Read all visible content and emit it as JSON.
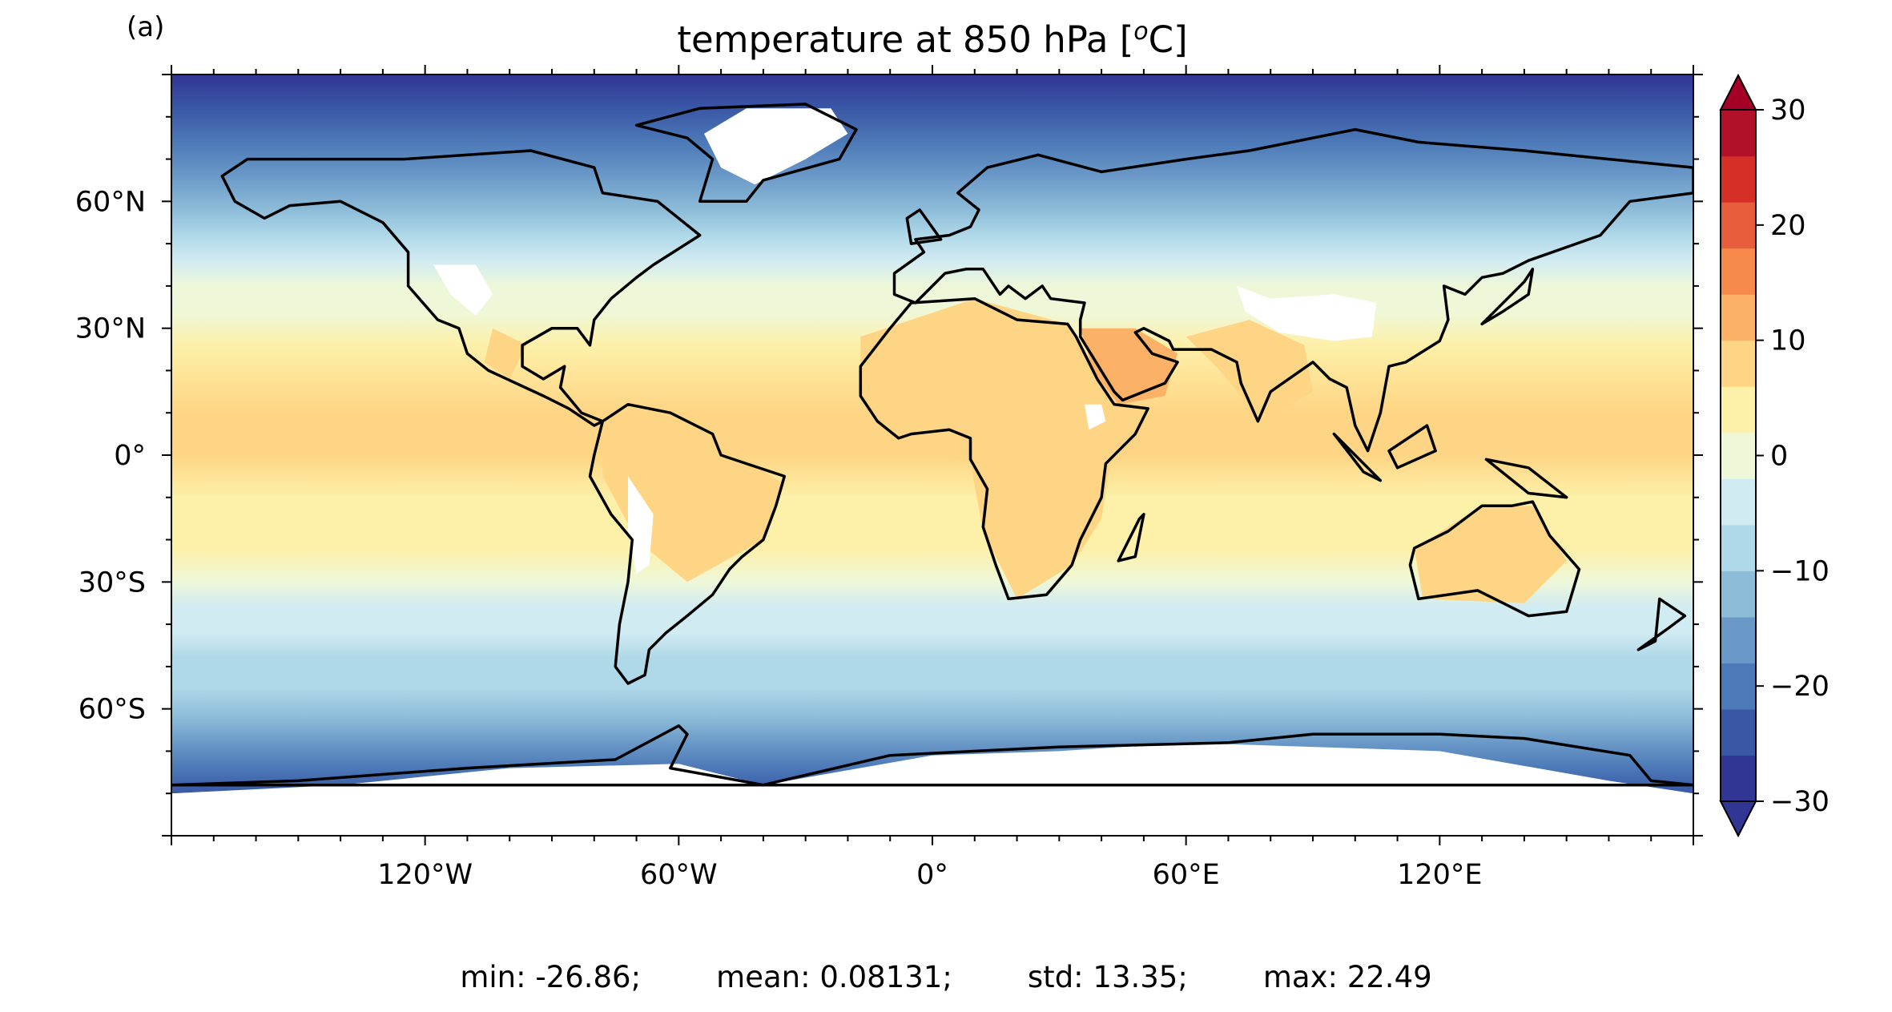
{
  "panel_label": "(a)",
  "title": {
    "text": "temperature at 850 hPa [",
    "superscript": "o",
    "unit": "C]"
  },
  "axes": {
    "lon_ticks": [
      {
        "value": -120,
        "label": "120°W"
      },
      {
        "value": -60,
        "label": "60°W"
      },
      {
        "value": 0,
        "label": "0°"
      },
      {
        "value": 60,
        "label": "60°E"
      },
      {
        "value": 120,
        "label": "120°E"
      }
    ],
    "lat_ticks": [
      {
        "value": 60,
        "label": "60°N"
      },
      {
        "value": 30,
        "label": "30°N"
      },
      {
        "value": 0,
        "label": "0°"
      },
      {
        "value": -30,
        "label": "30°S"
      },
      {
        "value": -60,
        "label": "60°S"
      }
    ],
    "lon_range": [
      -180,
      180
    ],
    "lat_range": [
      -90,
      90
    ]
  },
  "colorbar": {
    "min": -30,
    "max": 30,
    "step": 5,
    "extend": "both",
    "tick_labels": [
      {
        "value": 30,
        "label": "30"
      },
      {
        "value": 20,
        "label": "20"
      },
      {
        "value": 10,
        "label": "10"
      },
      {
        "value": 0,
        "label": "0"
      },
      {
        "value": -10,
        "label": "−10"
      },
      {
        "value": -20,
        "label": "−20"
      },
      {
        "value": -30,
        "label": "−30"
      }
    ],
    "colors": [
      "#313695",
      "#3a57a6",
      "#4c79b7",
      "#6a99c8",
      "#8dbcd9",
      "#afd8e8",
      "#d1ebf2",
      "#eef8d9",
      "#fdf0a9",
      "#fed584",
      "#fbb266",
      "#f58a4b",
      "#e75c3a",
      "#d52f27",
      "#b3102a"
    ],
    "under_color": "#313695",
    "over_color": "#a50026"
  },
  "stats": {
    "min": "min: -26.86;",
    "mean": "mean: 0.08131;",
    "std": "std: 13.35;",
    "max": "max: 22.49"
  },
  "missing_color": "#ffffff",
  "coastline_color": "#000000"
}
